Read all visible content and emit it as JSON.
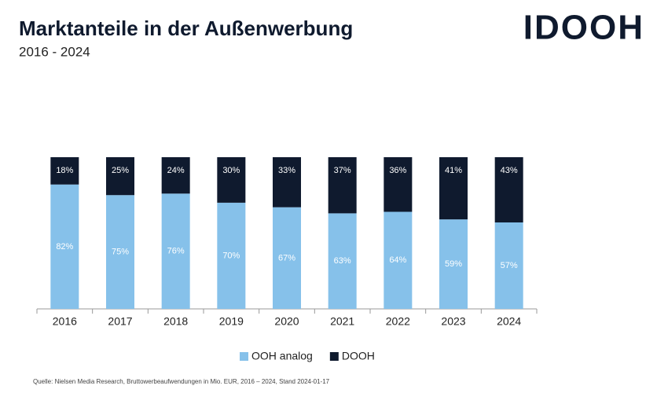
{
  "chart_data": {
    "type": "stacked_bar",
    "title": "Marktanteile in der Außenwerbung",
    "subtitle": "2016 - 2024",
    "logo": "IDOOH",
    "source": "Quelle: Nielsen Media Research, Bruttowerbeaufwendungen in Mio. EUR, 2016 – 2024, Stand 2024-01-17",
    "categories": [
      "2016",
      "2017",
      "2018",
      "2019",
      "2020",
      "2021",
      "2022",
      "2023",
      "2024"
    ],
    "series": [
      {
        "name": "OOH analog",
        "color": "#86c1ea",
        "values": [
          82,
          75,
          76,
          70,
          67,
          63,
          64,
          59,
          57
        ],
        "value_labels": [
          "82%",
          "75%",
          "76%",
          "70%",
          "67%",
          "63%",
          "64%",
          "59%",
          "57%"
        ]
      },
      {
        "name": "DOOH",
        "color": "#0f1a2e",
        "values": [
          18,
          25,
          24,
          30,
          33,
          37,
          36,
          41,
          43
        ],
        "value_labels": [
          "18%",
          "25%",
          "24%",
          "30%",
          "33%",
          "37%",
          "36%",
          "41%",
          "43%"
        ]
      }
    ],
    "legend": "bottom"
  }
}
